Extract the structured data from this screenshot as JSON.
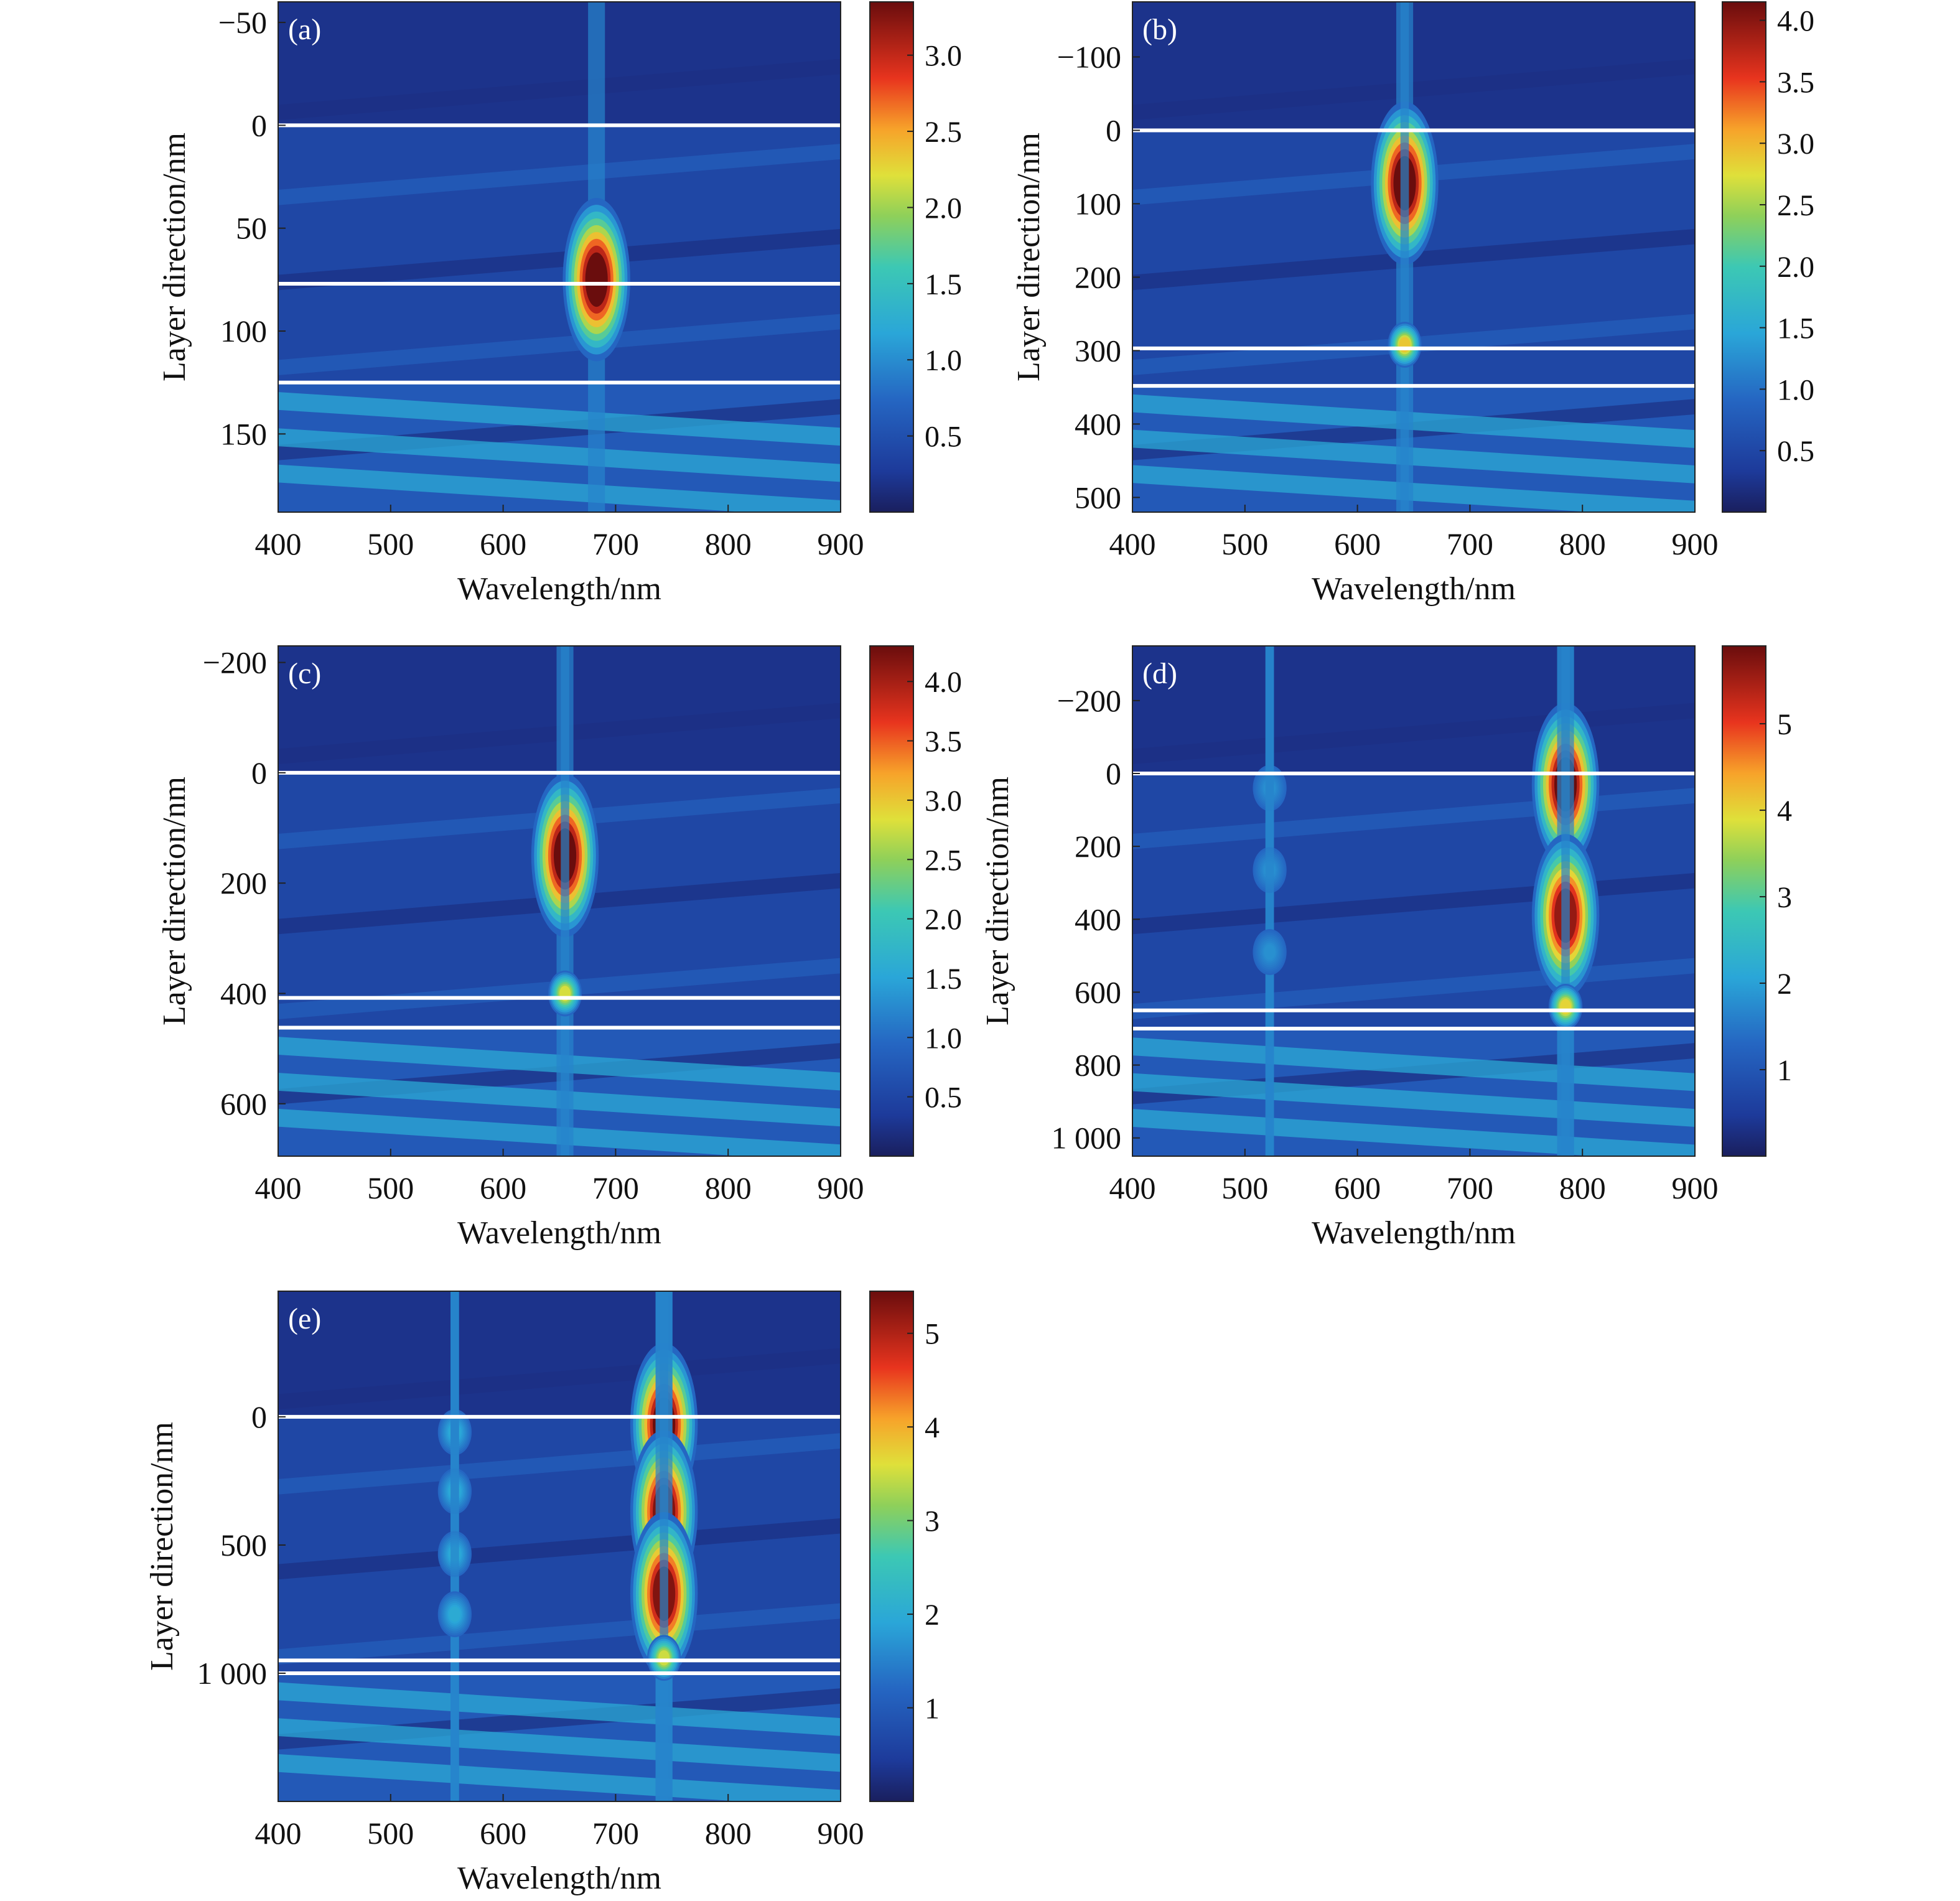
{
  "chart_data": [
    {
      "type": "heatmap",
      "panel_label": "(a)",
      "xlabel": "Wavelength/nm",
      "ylabel": "Layer direction/nm",
      "xlim": [
        400,
        900
      ],
      "ylim": [
        -60,
        188
      ],
      "y_inverted": true,
      "x_ticks": [
        "400",
        "500",
        "600",
        "700",
        "800",
        "900"
      ],
      "y_ticks": [
        {
          "value": -50,
          "label": "−50"
        },
        {
          "value": 0,
          "label": "0"
        },
        {
          "value": 50,
          "label": "50"
        },
        {
          "value": 100,
          "label": "100"
        },
        {
          "value": 150,
          "label": "150"
        }
      ],
      "interfaces": [
        0,
        77,
        125
      ],
      "colorbar": {
        "min": 0.0,
        "max": 3.35,
        "ticks": [
          {
            "value": 0.5,
            "label": "0.5"
          },
          {
            "value": 1.0,
            "label": "1.0"
          },
          {
            "value": 1.5,
            "label": "1.5"
          },
          {
            "value": 2.0,
            "label": "2.0"
          },
          {
            "value": 2.5,
            "label": "2.5"
          },
          {
            "value": 3.0,
            "label": "3.0"
          }
        ]
      },
      "hotspots": [
        {
          "wavelength": 683,
          "y": 75,
          "peak": 3.35
        }
      ]
    },
    {
      "type": "heatmap",
      "panel_label": "(b)",
      "xlabel": "Wavelength/nm",
      "ylabel": "Layer direction/nm",
      "xlim": [
        400,
        900
      ],
      "ylim": [
        -175,
        520
      ],
      "y_inverted": true,
      "x_ticks": [
        "400",
        "500",
        "600",
        "700",
        "800",
        "900"
      ],
      "y_ticks": [
        {
          "value": -100,
          "label": "−100"
        },
        {
          "value": 0,
          "label": "0"
        },
        {
          "value": 100,
          "label": "100"
        },
        {
          "value": 200,
          "label": "200"
        },
        {
          "value": 300,
          "label": "300"
        },
        {
          "value": 400,
          "label": "400"
        },
        {
          "value": 500,
          "label": "500"
        }
      ],
      "interfaces": [
        0,
        297,
        348
      ],
      "colorbar": {
        "min": 0.0,
        "max": 4.15,
        "ticks": [
          {
            "value": 0.5,
            "label": "0.5"
          },
          {
            "value": 1.0,
            "label": "1.0"
          },
          {
            "value": 1.5,
            "label": "1.5"
          },
          {
            "value": 2.0,
            "label": "2.0"
          },
          {
            "value": 2.5,
            "label": "2.5"
          },
          {
            "value": 3.0,
            "label": "3.0"
          },
          {
            "value": 3.5,
            "label": "3.5"
          },
          {
            "value": 4.0,
            "label": "4.0"
          }
        ]
      },
      "hotspots": [
        {
          "wavelength": 642,
          "y": 72,
          "peak": 4.15
        },
        {
          "wavelength": 642,
          "y": 292,
          "peak": 2.9
        }
      ]
    },
    {
      "type": "heatmap",
      "panel_label": "(c)",
      "xlabel": "Wavelength/nm",
      "ylabel": "Layer direction/nm",
      "xlim": [
        400,
        900
      ],
      "ylim": [
        -230,
        695
      ],
      "y_inverted": true,
      "x_ticks": [
        "400",
        "500",
        "600",
        "700",
        "800",
        "900"
      ],
      "y_ticks": [
        {
          "value": -200,
          "label": "−200"
        },
        {
          "value": 0,
          "label": "0"
        },
        {
          "value": 200,
          "label": "200"
        },
        {
          "value": 400,
          "label": "400"
        },
        {
          "value": 600,
          "label": "600"
        }
      ],
      "interfaces": [
        0,
        408,
        462
      ],
      "colorbar": {
        "min": 0.0,
        "max": 4.3,
        "ticks": [
          {
            "value": 0.5,
            "label": "0.5"
          },
          {
            "value": 1.0,
            "label": "1.0"
          },
          {
            "value": 1.5,
            "label": "1.5"
          },
          {
            "value": 2.0,
            "label": "2.0"
          },
          {
            "value": 2.5,
            "label": "2.5"
          },
          {
            "value": 3.0,
            "label": "3.0"
          },
          {
            "value": 3.5,
            "label": "3.5"
          },
          {
            "value": 4.0,
            "label": "4.0"
          }
        ]
      },
      "hotspots": [
        {
          "wavelength": 655,
          "y": 150,
          "peak": 4.3
        },
        {
          "wavelength": 655,
          "y": 400,
          "peak": 2.8
        }
      ]
    },
    {
      "type": "heatmap",
      "panel_label": "(d)",
      "xlabel": "Wavelength/nm",
      "ylabel": "Layer direction/nm",
      "xlim": [
        400,
        900
      ],
      "ylim": [
        -350,
        1050
      ],
      "y_inverted": true,
      "x_ticks": [
        "400",
        "500",
        "600",
        "700",
        "800",
        "900"
      ],
      "y_ticks": [
        {
          "value": -200,
          "label": "−200"
        },
        {
          "value": 0,
          "label": "0"
        },
        {
          "value": 200,
          "label": "200"
        },
        {
          "value": 400,
          "label": "400"
        },
        {
          "value": 600,
          "label": "600"
        },
        {
          "value": 800,
          "label": "800"
        },
        {
          "value": 1000,
          "label": "1 000"
        }
      ],
      "interfaces": [
        0,
        650,
        700
      ],
      "colorbar": {
        "min": 0.0,
        "max": 5.9,
        "ticks": [
          {
            "value": 1,
            "label": "1"
          },
          {
            "value": 2,
            "label": "2"
          },
          {
            "value": 3,
            "label": "3"
          },
          {
            "value": 4,
            "label": "4"
          },
          {
            "value": 5,
            "label": "5"
          }
        ]
      },
      "hotspots": [
        {
          "wavelength": 785,
          "y": 30,
          "peak": 5.9
        },
        {
          "wavelength": 785,
          "y": 390,
          "peak": 5.6
        },
        {
          "wavelength": 785,
          "y": 640,
          "peak": 4.0
        },
        {
          "wavelength": 522,
          "y": 40,
          "peak": 1.8
        },
        {
          "wavelength": 522,
          "y": 265,
          "peak": 1.8
        },
        {
          "wavelength": 522,
          "y": 490,
          "peak": 1.8
        }
      ]
    },
    {
      "type": "heatmap",
      "panel_label": "(e)",
      "xlabel": "Wavelength/nm",
      "ylabel": "Layer direction/nm",
      "xlim": [
        400,
        900
      ],
      "ylim": [
        -490,
        1500
      ],
      "y_inverted": true,
      "x_ticks": [
        "400",
        "500",
        "600",
        "700",
        "800",
        "900"
      ],
      "y_ticks": [
        {
          "value": 0,
          "label": "0"
        },
        {
          "value": 500,
          "label": "500"
        },
        {
          "value": 1000,
          "label": "1 000"
        }
      ],
      "interfaces": [
        0,
        950,
        1000
      ],
      "colorbar": {
        "min": 0.0,
        "max": 5.45,
        "ticks": [
          {
            "value": 1,
            "label": "1"
          },
          {
            "value": 2,
            "label": "2"
          },
          {
            "value": 3,
            "label": "3"
          },
          {
            "value": 4,
            "label": "4"
          },
          {
            "value": 5,
            "label": "5"
          }
        ]
      },
      "hotspots": [
        {
          "wavelength": 743,
          "y": 30,
          "peak": 5.45
        },
        {
          "wavelength": 743,
          "y": 370,
          "peak": 5.3
        },
        {
          "wavelength": 743,
          "y": 690,
          "peak": 5.3
        },
        {
          "wavelength": 743,
          "y": 940,
          "peak": 3.5
        },
        {
          "wavelength": 557,
          "y": 60,
          "peak": 2.0
        },
        {
          "wavelength": 557,
          "y": 290,
          "peak": 2.0
        },
        {
          "wavelength": 557,
          "y": 535,
          "peak": 2.0
        },
        {
          "wavelength": 557,
          "y": 770,
          "peak": 2.0
        }
      ]
    }
  ]
}
